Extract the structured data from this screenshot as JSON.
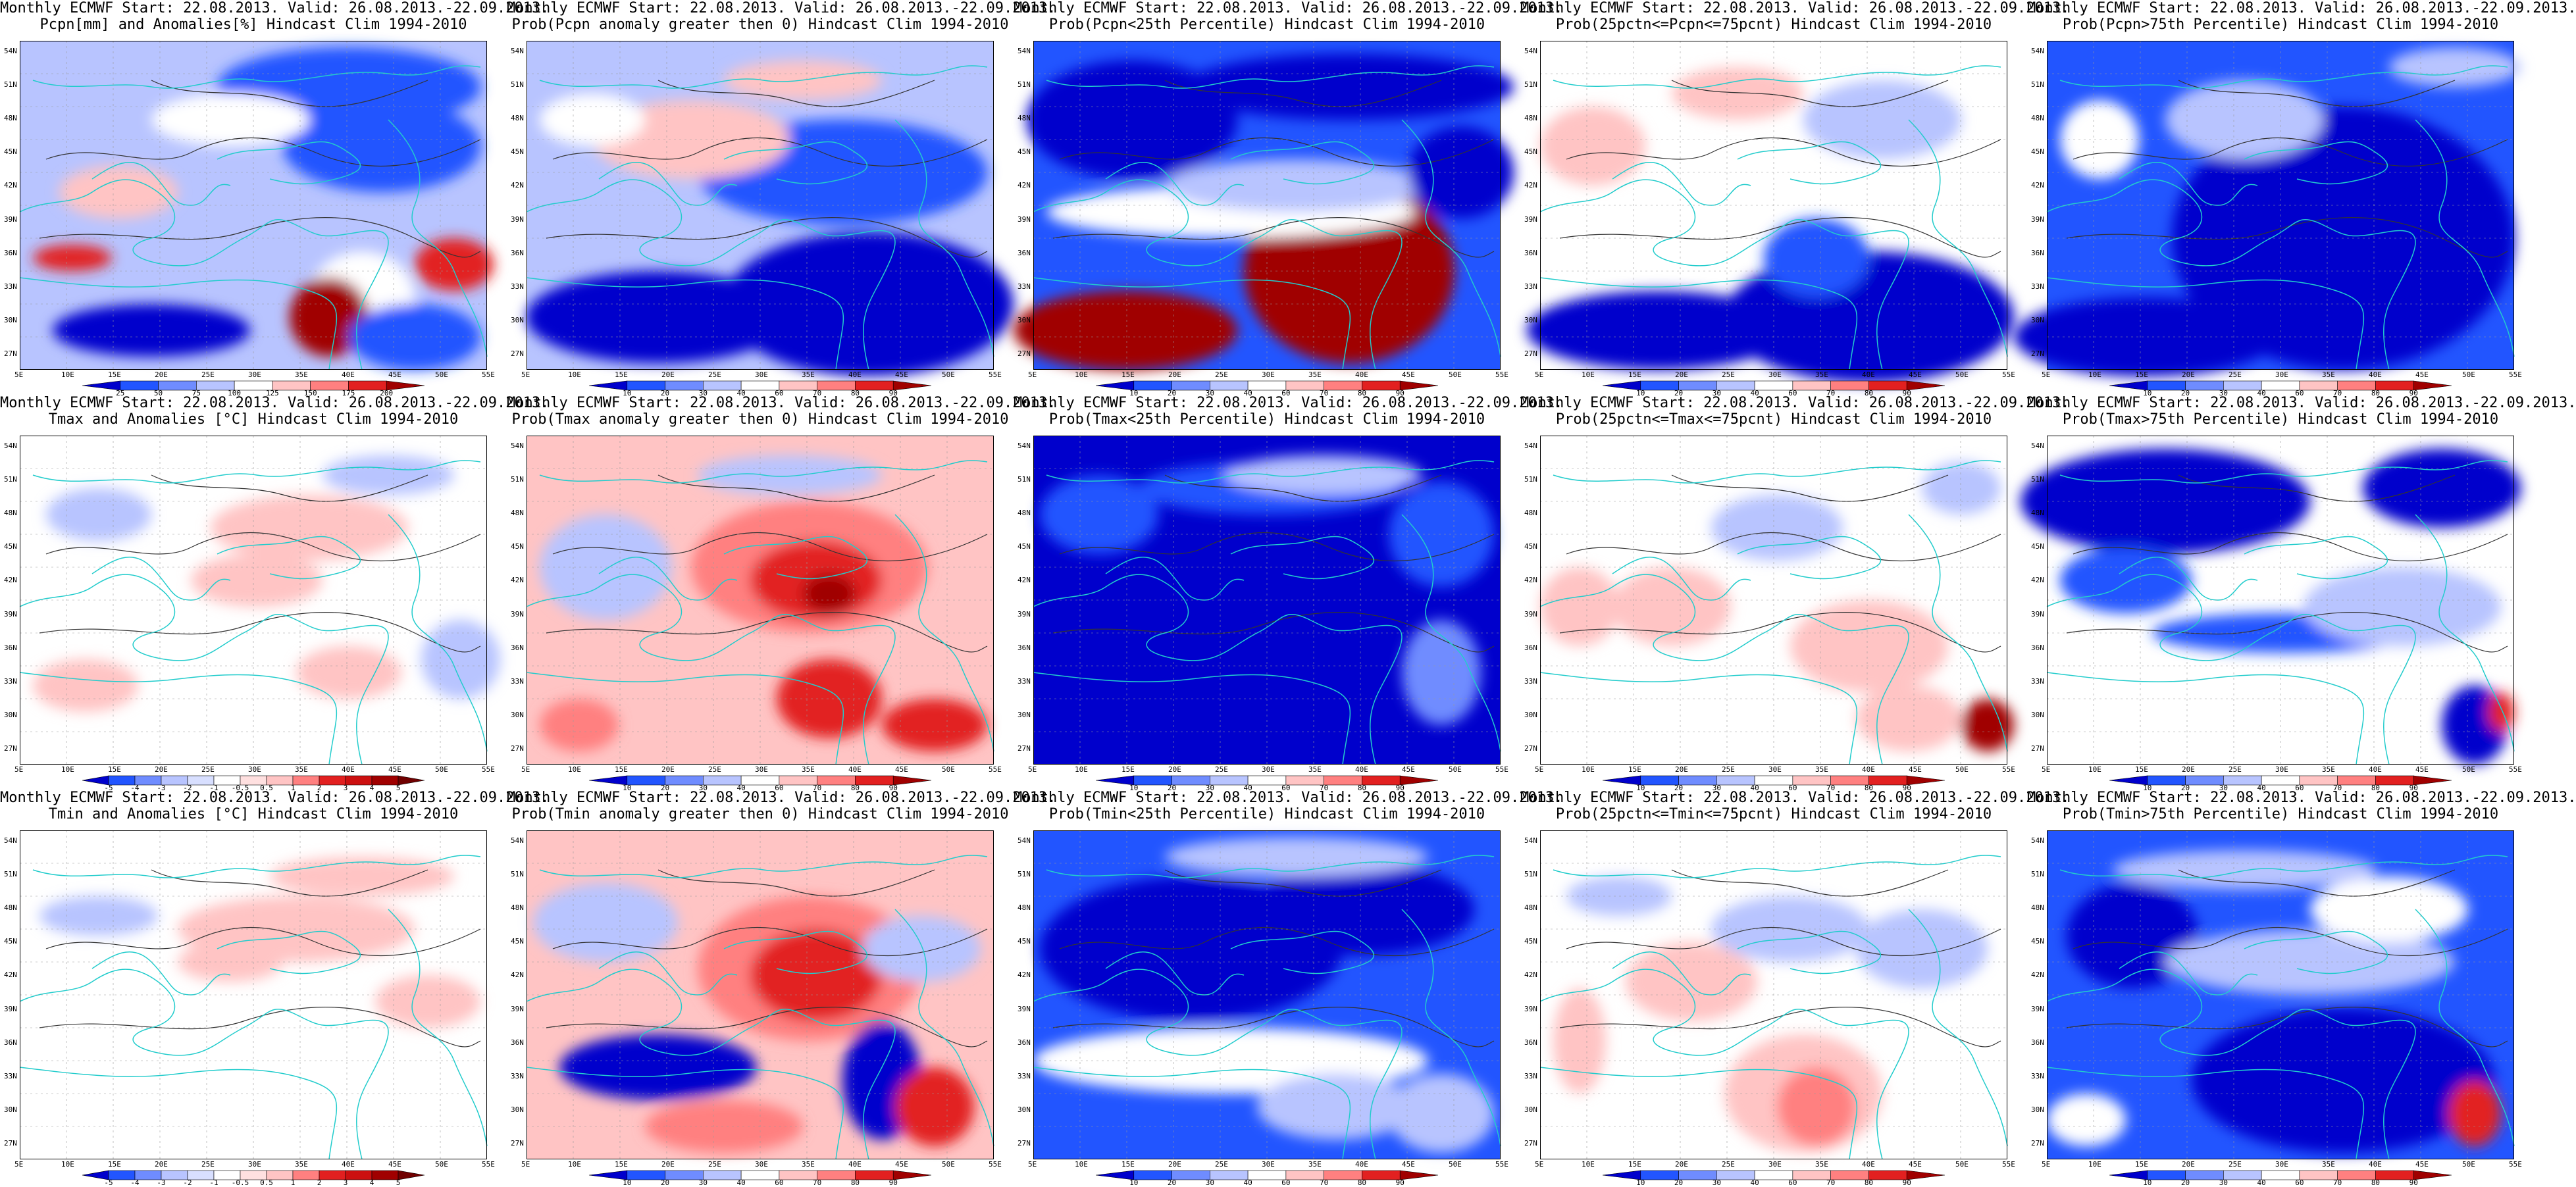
{
  "panels": [
    {
      "title1": "Monthly ECMWF Start: 22.08.2013. Valid: 26.08.2013.-22.09.2013.",
      "title2": "Pcpn[mm] and Anomalies[%] Hindcast Clim 1994-2010",
      "scale": [
        "25",
        "50",
        "75",
        "100",
        "125",
        "150",
        "175",
        "200"
      ],
      "kind": "anom"
    },
    {
      "title1": "Monthly ECMWF Start: 22.08.2013. Valid: 26.08.2013.-22.09.2013.",
      "title2": "Prob(Pcpn anomaly greater then 0) Hindcast Clim 1994-2010",
      "scale": [
        "10",
        "20",
        "30",
        "40",
        "60",
        "70",
        "80",
        "90"
      ],
      "kind": "prob"
    },
    {
      "title1": "Monthly ECMWF Start: 22.08.2013. Valid: 26.08.2013.-22.09.2013.",
      "title2": "Prob(Pcpn<25th Percentile) Hindcast Clim 1994-2010",
      "scale": [
        "10",
        "20",
        "30",
        "40",
        "60",
        "70",
        "80",
        "90"
      ],
      "kind": "prob"
    },
    {
      "title1": "Monthly ECMWF Start: 22.08.2013. Valid: 26.08.2013.-22.09.2013.",
      "title2": "Prob(25pctn<=Pcpn<=75pcnt) Hindcast Clim 1994-2010",
      "scale": [
        "10",
        "20",
        "30",
        "40",
        "60",
        "70",
        "80",
        "90"
      ],
      "kind": "prob"
    },
    {
      "title1": "Monthly ECMWF Start: 22.08.2013. Valid: 26.08.2013.-22.09.2013.",
      "title2": "Prob(Pcpn>75th Percentile) Hindcast Clim 1994-2010",
      "scale": [
        "10",
        "20",
        "30",
        "40",
        "60",
        "70",
        "80",
        "90"
      ],
      "kind": "prob"
    },
    {
      "title1": "Monthly ECMWF Start: 22.08.2013. Valid: 26.08.2013.-22.09.2013.",
      "title2": "Tmax and Anomalies [°C] Hindcast Clim 1994-2010",
      "scale": [
        "-5",
        "-4",
        "-3",
        "-2",
        "-1",
        "-0.5",
        "0.5",
        "1",
        "2",
        "3",
        "4",
        "5"
      ],
      "kind": "anom"
    },
    {
      "title1": "Monthly ECMWF Start: 22.08.2013. Valid: 26.08.2013.-22.09.2013.",
      "title2": "Prob(Tmax anomaly greater then 0) Hindcast Clim 1994-2010",
      "scale": [
        "10",
        "20",
        "30",
        "40",
        "60",
        "70",
        "80",
        "90"
      ],
      "kind": "prob"
    },
    {
      "title1": "Monthly ECMWF Start: 22.08.2013. Valid: 26.08.2013.-22.09.2013.",
      "title2": "Prob(Tmax<25th Percentile) Hindcast Clim 1994-2010",
      "scale": [
        "10",
        "20",
        "30",
        "40",
        "60",
        "70",
        "80",
        "90"
      ],
      "kind": "prob"
    },
    {
      "title1": "Monthly ECMWF Start: 22.08.2013. Valid: 26.08.2013.-22.09.2013.",
      "title2": "Prob(25pctn<=Tmax<=75pcnt) Hindcast Clim 1994-2010",
      "scale": [
        "10",
        "20",
        "30",
        "40",
        "60",
        "70",
        "80",
        "90"
      ],
      "kind": "prob"
    },
    {
      "title1": "Monthly ECMWF Start: 22.08.2013. Valid: 26.08.2013.-22.09.2013.",
      "title2": "Prob(Tmax>75th Percentile) Hindcast Clim 1994-2010",
      "scale": [
        "10",
        "20",
        "30",
        "40",
        "60",
        "70",
        "80",
        "90"
      ],
      "kind": "prob"
    },
    {
      "title1": "Monthly ECMWF Start: 22.08.2013. Valid: 26.08.2013.-22.09.2013.",
      "title2": "Tmin and Anomalies [°C] Hindcast Clim 1994-2010",
      "scale": [
        "-5",
        "-4",
        "-3",
        "-2",
        "-1",
        "-0.5",
        "0.5",
        "1",
        "2",
        "3",
        "4",
        "5"
      ],
      "kind": "anom"
    },
    {
      "title1": "Monthly ECMWF Start: 22.08.2013. Valid: 26.08.2013.-22.09.2013.",
      "title2": "Prob(Tmin anomaly greater then 0) Hindcast Clim 1994-2010",
      "scale": [
        "10",
        "20",
        "30",
        "40",
        "60",
        "70",
        "80",
        "90"
      ],
      "kind": "prob"
    },
    {
      "title1": "Monthly ECMWF Start: 22.08.2013. Valid: 26.08.2013.-22.09.2013.",
      "title2": "Prob(Tmin<25th Percentile) Hindcast Clim 1994-2010",
      "scale": [
        "10",
        "20",
        "30",
        "40",
        "60",
        "70",
        "80",
        "90"
      ],
      "kind": "prob"
    },
    {
      "title1": "Monthly ECMWF Start: 22.08.2013. Valid: 26.08.2013.-22.09.2013.",
      "title2": "Prob(25pctn<=Tmin<=75pcnt) Hindcast Clim 1994-2010",
      "scale": [
        "10",
        "20",
        "30",
        "40",
        "60",
        "70",
        "80",
        "90"
      ],
      "kind": "prob"
    },
    {
      "title1": "Monthly ECMWF Start: 22.08.2013. Valid: 26.08.2013.-22.09.2013.",
      "title2": "Prob(Tmin>75th Percentile) Hindcast Clim 1994-2010",
      "scale": [
        "10",
        "20",
        "30",
        "40",
        "60",
        "70",
        "80",
        "90"
      ],
      "kind": "prob"
    }
  ],
  "lat_labels": [
    "54N",
    "51N",
    "48N",
    "45N",
    "42N",
    "39N",
    "36N",
    "33N",
    "30N",
    "27N"
  ],
  "lon_labels": [
    "5E",
    "10E",
    "15E",
    "20E",
    "25E",
    "30E",
    "35E",
    "40E",
    "45E",
    "50E",
    "55E"
  ],
  "colors": {
    "dark_blue": "#0000cc",
    "blue": "#2255ff",
    "mid_blue": "#6f8cff",
    "light_blue": "#b8c4ff",
    "white": "#ffffff",
    "light_red": "#ffc4c4",
    "mid_red": "#ff8080",
    "red": "#e22020",
    "dark_red": "#a00000",
    "coast": "#22cccc",
    "contour": "#333333"
  }
}
